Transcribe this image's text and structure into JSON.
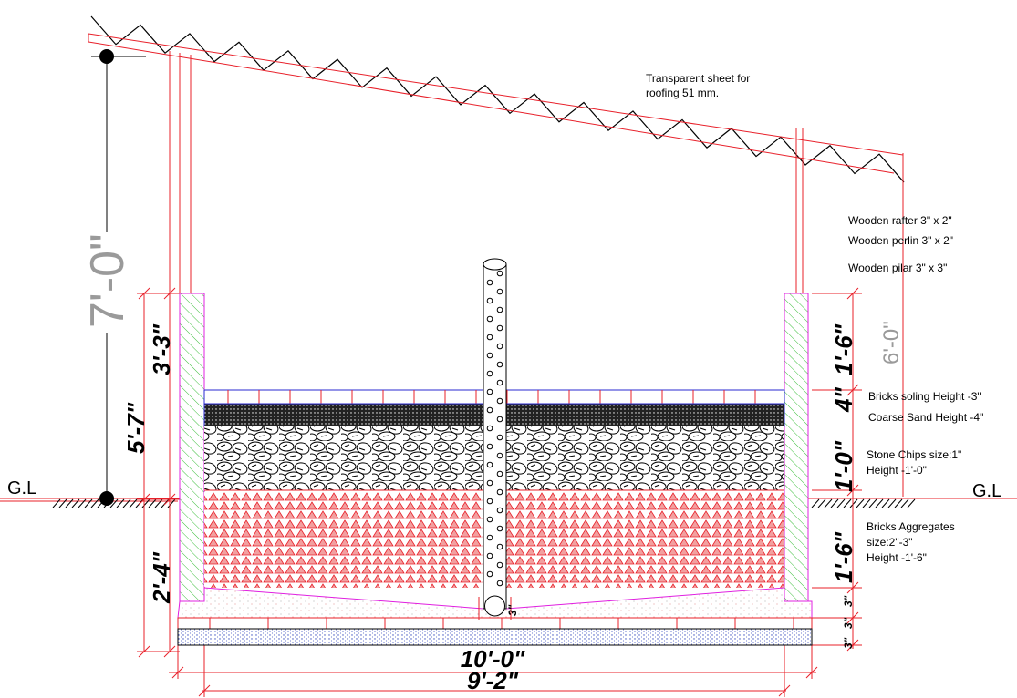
{
  "roof_note": [
    "Transparent sheet for",
    "roofing  51 mm."
  ],
  "members": [
    "Wooden rafter 3\" x 2\"",
    "Wooden perlin 3\" x 2\"",
    "Wooden pilar 3\" x 3\""
  ],
  "layers": [
    {
      "name": "Bricks soling Height -3\""
    },
    {
      "name": "Coarse Sand Height -4\""
    },
    {
      "name": "Stone Chips  size:1\"",
      "detail": [
        "Height -1'-0\""
      ]
    },
    {
      "name": "Bricks Aggregates",
      "detail": [
        "size:2\"-3\"",
        "Height -1'-6\""
      ]
    }
  ],
  "ground_level": [
    "G.L",
    "G.L"
  ],
  "dimensions": {
    "total_height": "7'-0\"",
    "above_ground": "5'-7\"",
    "wall_above": "3'-3\"",
    "below_ground": "2'-4\"",
    "wall_top": "1'-6\"",
    "soling_sand": "4\"",
    "chips": "1'-0\"",
    "aggregates": "1'-6\"",
    "pillar": "6'-0\"",
    "pipe": "3\"",
    "base": [
      "3\"",
      "3\"",
      "3\""
    ],
    "outer_width": "10'-0\"",
    "inner_width": "9'-2\""
  }
}
